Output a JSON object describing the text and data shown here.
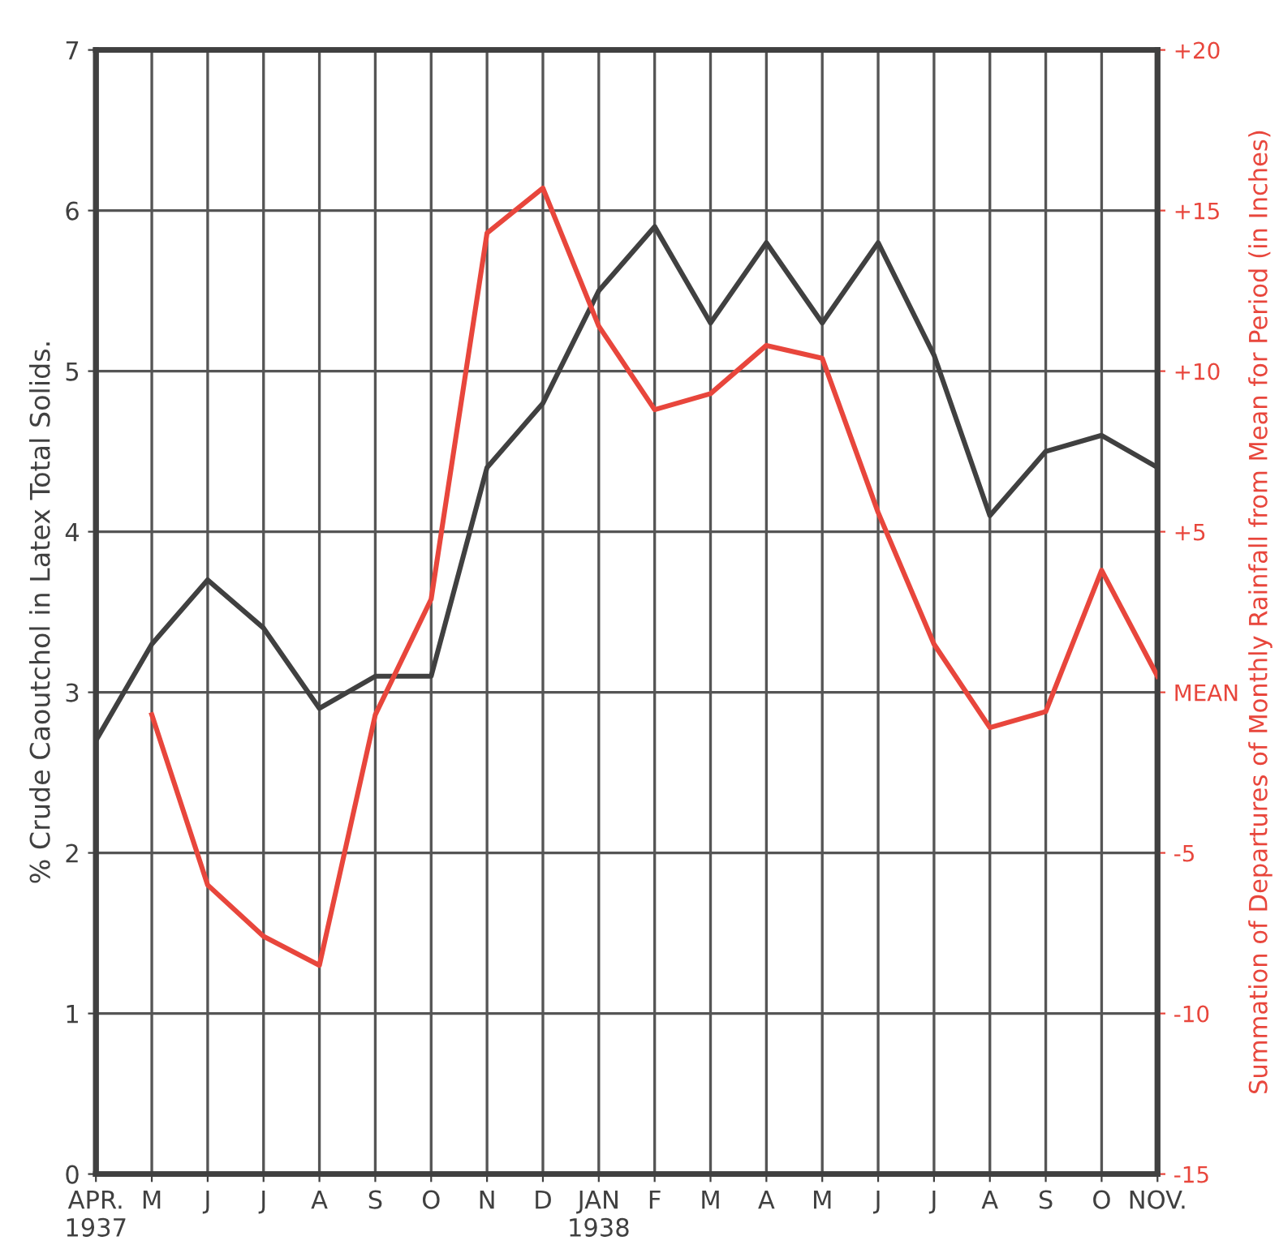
{
  "chart_data": {
    "type": "line",
    "categories": [
      "APR.\n1937",
      "M",
      "J",
      "J",
      "A",
      "S",
      "O",
      "N",
      "D",
      "JAN\n1938",
      "F",
      "M",
      "A",
      "M",
      "J",
      "J",
      "A",
      "S",
      "O",
      "NOV."
    ],
    "series": [
      {
        "color": "#404040",
        "values": [
          2.7,
          3.3,
          3.7,
          3.4,
          2.9,
          3.1,
          3.1,
          4.4,
          4.8,
          5.5,
          5.9,
          5.3,
          5.8,
          5.3,
          5.8,
          5.1,
          4.1,
          4.5,
          4.6,
          4.4
        ]
      },
      {
        "color": "#e8463c",
        "axis": "y2",
        "values": [
          null,
          -0.7,
          -6.0,
          -7.6,
          -8.5,
          -0.7,
          2.9,
          14.3,
          15.7,
          11.4,
          8.8,
          9.3,
          10.8,
          10.4,
          5.6,
          1.5,
          -1.1,
          -0.6,
          3.8,
          0.5
        ]
      }
    ],
    "ylabel": "% Crude Caoutchol in Latex Total Solids.",
    "y2label": "Summation of Departures of Monthly Rainfall from Mean for Period (in Inches)",
    "ylim": [
      0,
      7
    ],
    "yticks": [
      0,
      1,
      2,
      3,
      4,
      5,
      6,
      7
    ],
    "y2lim": [
      -15,
      20
    ],
    "y2ticks": [
      {
        "value": 20,
        "label": "+20"
      },
      {
        "value": 15,
        "label": "+15"
      },
      {
        "value": 10,
        "label": "+10"
      },
      {
        "value": 5,
        "label": "+5"
      },
      {
        "value": 0,
        "label": "MEAN"
      },
      {
        "value": -5,
        "label": "-5"
      },
      {
        "value": -10,
        "label": "-10"
      },
      {
        "value": -15,
        "label": "-15"
      }
    ],
    "grid": true,
    "marker": "none",
    "line_style": "solid"
  }
}
